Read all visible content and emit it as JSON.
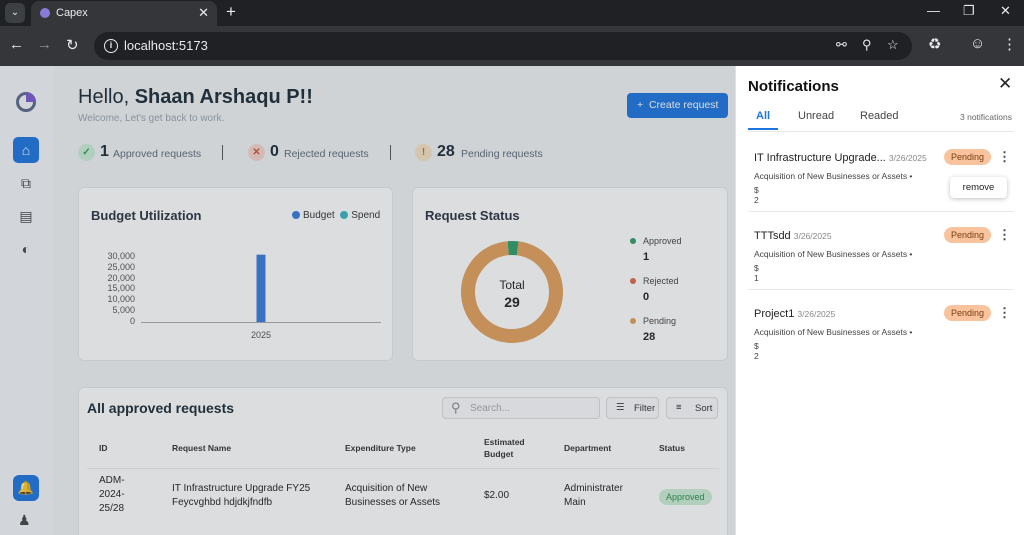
{
  "browser": {
    "tab_title": "Capex",
    "url": "localhost:5173"
  },
  "header": {
    "greeting_prefix": "Hello, ",
    "user_name": "Shaan Arshaqu P!!",
    "subtitle": "Welcome, Let's get back to work.",
    "create_button": "Create request"
  },
  "stats": [
    {
      "count": "1",
      "label": "Approved requests"
    },
    {
      "count": "0",
      "label": "Rejected requests"
    },
    {
      "count": "28",
      "label": "Pending requests"
    }
  ],
  "budget_card": {
    "title": "Budget Utilization",
    "legend_budget": "Budget",
    "legend_spend": "Spend"
  },
  "status_card": {
    "title": "Request Status",
    "total_label": "Total",
    "total_value": "29",
    "items": [
      {
        "label": "Approved",
        "value": "1"
      },
      {
        "label": "Rejected",
        "value": "0"
      },
      {
        "label": "Pending",
        "value": "28"
      }
    ]
  },
  "colors": {
    "primary": "#1f76e0",
    "budget": "#3b7ddd",
    "spend": "#3cb4c4",
    "approved": "#2f9e6a",
    "rejected": "#e06a4a",
    "pending": "#e3a05c"
  },
  "chart_data": [
    {
      "type": "bar",
      "title": "Budget Utilization",
      "categories": [
        "2025"
      ],
      "series": [
        {
          "name": "Budget",
          "values": [
            31000
          ]
        },
        {
          "name": "Spend",
          "values": [
            0
          ]
        }
      ],
      "ylim": [
        0,
        35000
      ],
      "yticks": [
        "30,000",
        "25,000",
        "20,000",
        "15,000",
        "10,000",
        "5,000",
        "0"
      ],
      "legend": "top-right"
    },
    {
      "type": "pie",
      "title": "Request Status",
      "categories": [
        "Approved",
        "Rejected",
        "Pending"
      ],
      "values": [
        1,
        0,
        28
      ],
      "legend": "right"
    }
  ],
  "table": {
    "title": "All approved requests",
    "search_placeholder": "Search...",
    "filter_label": "Filter",
    "sort_label": "Sort",
    "columns": [
      "ID",
      "Request Name",
      "Expenditure Type",
      "Estimated Budget",
      "Department",
      "Status"
    ],
    "rows": [
      {
        "id": "ADM-2024-25/28",
        "name": "IT Infrastructure Upgrade FY25 Feycvghbd hdjdkjfndfb",
        "type": "Acquisition of New Businesses or Assets",
        "budget": "$2.00",
        "department": "Administrater Main",
        "status": "Approved"
      }
    ]
  },
  "notifications": {
    "title": "Notifications",
    "tabs": [
      "All",
      "Unread",
      "Readed"
    ],
    "count_text": "3 notifications",
    "remove_label": "remove",
    "items": [
      {
        "title": "IT Infrastructure Upgrade...",
        "date": "3/26/2025",
        "type": "Acquisition of New Businesses or Assets •",
        "amount": "$ 2",
        "status": "Pending"
      },
      {
        "title": "TTTsdd",
        "date": "3/26/2025",
        "type": "Acquisition of New Businesses or Assets •",
        "amount": "$ 1",
        "status": "Pending"
      },
      {
        "title": "Project1",
        "date": "3/26/2025",
        "type": "Acquisition of New Businesses or Assets •",
        "amount": "$ 2",
        "status": "Pending"
      }
    ]
  }
}
